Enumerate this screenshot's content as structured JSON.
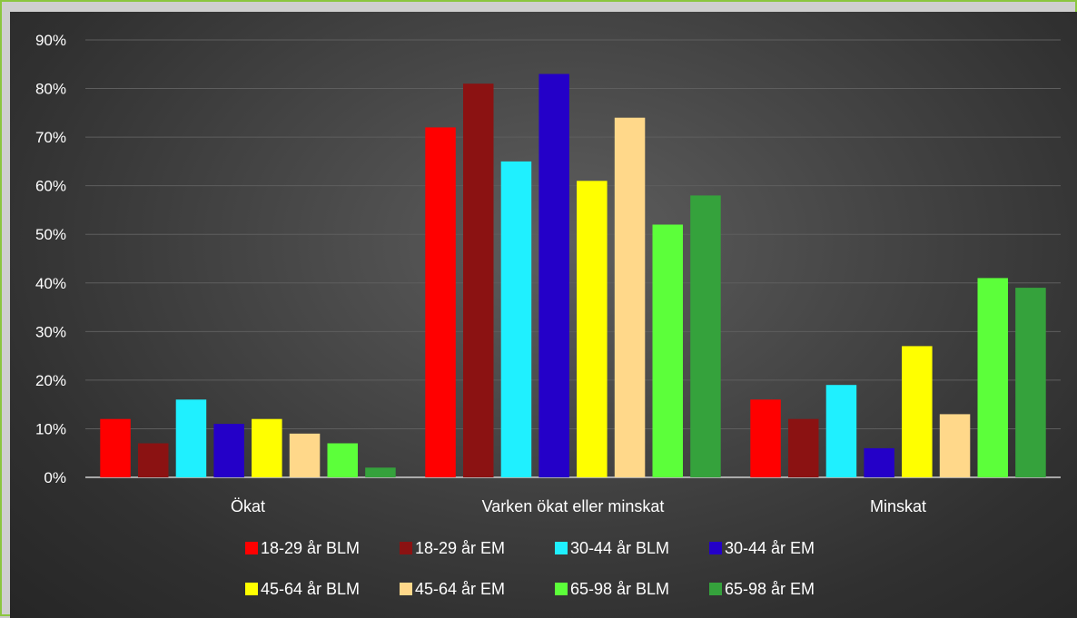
{
  "chart_data": {
    "type": "bar",
    "title": "",
    "xlabel": "",
    "ylabel": "",
    "ylim": [
      0,
      90
    ],
    "y_ticks": [
      "0%",
      "10%",
      "20%",
      "30%",
      "40%",
      "50%",
      "60%",
      "70%",
      "80%",
      "90%"
    ],
    "y_tick_values": [
      0,
      10,
      20,
      30,
      40,
      50,
      60,
      70,
      80,
      90
    ],
    "grid": true,
    "legend_position": "bottom",
    "categories": [
      "Ökat",
      "Varken ökat eller minskat",
      "Minskat"
    ],
    "series": [
      {
        "name": "18-29 år BLM",
        "color": "#ff0000",
        "values": [
          12,
          72,
          16
        ]
      },
      {
        "name": "18-29 år EM",
        "color": "#8b1212",
        "values": [
          7,
          81,
          12
        ]
      },
      {
        "name": "30-44 år BLM",
        "color": "#1ff0ff",
        "values": [
          16,
          65,
          19
        ]
      },
      {
        "name": "30-44 år EM",
        "color": "#2400c8",
        "values": [
          11,
          83,
          6
        ]
      },
      {
        "name": "45-64 år BLM",
        "color": "#ffff00",
        "values": [
          12,
          61,
          27
        ]
      },
      {
        "name": "45-64 år EM",
        "color": "#ffd88a",
        "values": [
          9,
          74,
          13
        ]
      },
      {
        "name": "65-98 år BLM",
        "color": "#5cff3a",
        "values": [
          7,
          52,
          41
        ]
      },
      {
        "name": "65-98 år EM",
        "color": "#35a23c",
        "values": [
          2,
          58,
          39
        ]
      }
    ]
  }
}
